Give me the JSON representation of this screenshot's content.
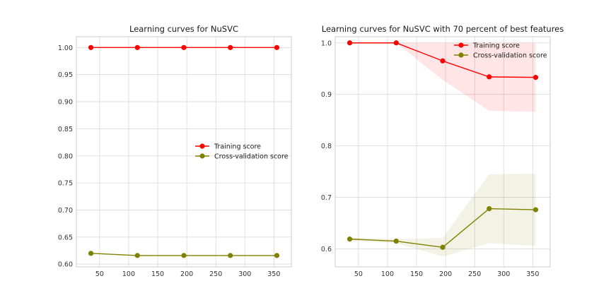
{
  "chart_data": [
    {
      "type": "line",
      "title": "Learning curves for NuSVC",
      "xlabel": "",
      "ylabel": "",
      "x": [
        35,
        115,
        195,
        275,
        355
      ],
      "xlim": [
        10,
        380
      ],
      "ylim": [
        0.595,
        1.02
      ],
      "xticks": [
        50,
        100,
        150,
        200,
        250,
        300,
        350
      ],
      "yticks": [
        0.6,
        0.65,
        0.7,
        0.75,
        0.8,
        0.85,
        0.9,
        0.95,
        1.0
      ],
      "ytick_labels": [
        "0.60",
        "0.65",
        "0.70",
        "0.75",
        "0.80",
        "0.85",
        "0.90",
        "0.95",
        "1.00"
      ],
      "grid": true,
      "legend_position": "center-right",
      "series": [
        {
          "name": "Training score",
          "color": "#ff0000",
          "values": [
            1.0,
            1.0,
            1.0,
            1.0,
            1.0
          ],
          "band_low": [
            1.0,
            1.0,
            1.0,
            1.0,
            1.0
          ],
          "band_high": [
            1.0,
            1.0,
            1.0,
            1.0,
            1.0
          ]
        },
        {
          "name": "Cross-validation score",
          "color": "#808000",
          "values": [
            0.62,
            0.616,
            0.616,
            0.616,
            0.616
          ],
          "band_low": [
            0.62,
            0.616,
            0.616,
            0.616,
            0.616
          ],
          "band_high": [
            0.62,
            0.616,
            0.616,
            0.616,
            0.616
          ]
        }
      ]
    },
    {
      "type": "line",
      "title": "Learning curves for NuSVC with 70 percent of best features",
      "xlabel": "",
      "ylabel": "",
      "x": [
        35,
        115,
        195,
        275,
        355
      ],
      "xlim": [
        10,
        380
      ],
      "ylim": [
        0.565,
        1.012
      ],
      "xticks": [
        50,
        100,
        150,
        200,
        250,
        300,
        350
      ],
      "yticks": [
        0.6,
        0.7,
        0.8,
        0.9,
        1.0
      ],
      "ytick_labels": [
        "0.6",
        "0.7",
        "0.8",
        "0.9",
        "1.0"
      ],
      "grid": true,
      "legend_position": "top-right",
      "series": [
        {
          "name": "Training score",
          "color": "#ff0000",
          "values": [
            1.0,
            1.0,
            0.965,
            0.934,
            0.933
          ],
          "band_low": [
            1.0,
            1.0,
            0.928,
            0.868,
            0.866
          ],
          "band_high": [
            1.0,
            1.0,
            1.0,
            1.0,
            1.0
          ]
        },
        {
          "name": "Cross-validation score",
          "color": "#808000",
          "values": [
            0.619,
            0.615,
            0.603,
            0.678,
            0.676
          ],
          "band_low": [
            0.616,
            0.611,
            0.585,
            0.611,
            0.606
          ],
          "band_high": [
            0.622,
            0.619,
            0.621,
            0.745,
            0.746
          ]
        }
      ]
    }
  ]
}
